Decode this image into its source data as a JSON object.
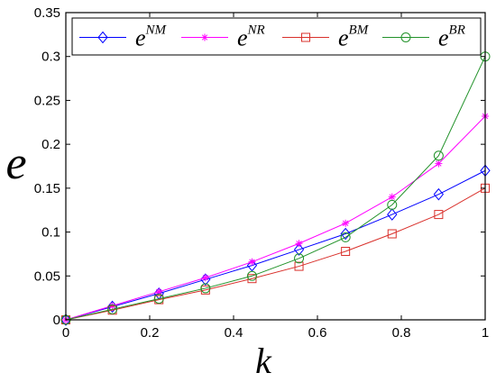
{
  "chart_data": {
    "type": "line",
    "title": "",
    "xlabel": "k",
    "ylabel": "e",
    "xlim": [
      0,
      1
    ],
    "ylim": [
      0,
      0.35
    ],
    "xticks": [
      0,
      0.2,
      0.4,
      0.6,
      0.8,
      1
    ],
    "xtick_labels": [
      "0",
      "0.2",
      "0.4",
      "0.6",
      "0.8",
      "1"
    ],
    "yticks": [
      0,
      0.05,
      0.1,
      0.15,
      0.2,
      0.25,
      0.3,
      0.35
    ],
    "ytick_labels": [
      "0",
      "0.05",
      "0.1",
      "0.15",
      "0.2",
      "0.25",
      "0.3",
      "0.35"
    ],
    "grid": false,
    "legend_position": "top",
    "x": [
      0,
      0.111,
      0.222,
      0.333,
      0.444,
      0.556,
      0.667,
      0.778,
      0.889,
      1.0
    ],
    "series": [
      {
        "name": "e^{NM}",
        "base": "e",
        "sup": "NM",
        "color": "#0000ff",
        "marker": "diamond",
        "values": [
          0,
          0.015,
          0.03,
          0.046,
          0.062,
          0.08,
          0.098,
          0.12,
          0.143,
          0.17
        ]
      },
      {
        "name": "e^{NR}",
        "base": "e",
        "sup": "NR",
        "color": "#ff00ff",
        "marker": "star",
        "values": [
          0,
          0.016,
          0.032,
          0.048,
          0.066,
          0.087,
          0.11,
          0.14,
          0.178,
          0.232
        ]
      },
      {
        "name": "e^{BM}",
        "base": "e",
        "sup": "BM",
        "color": "#d9302b",
        "marker": "square",
        "values": [
          0,
          0.011,
          0.023,
          0.034,
          0.047,
          0.061,
          0.078,
          0.098,
          0.12,
          0.15
        ]
      },
      {
        "name": "e^{BR}",
        "base": "e",
        "sup": "BR",
        "color": "#22922a",
        "marker": "circle",
        "values": [
          0,
          0.012,
          0.024,
          0.036,
          0.05,
          0.07,
          0.094,
          0.131,
          0.187,
          0.3
        ]
      }
    ]
  }
}
